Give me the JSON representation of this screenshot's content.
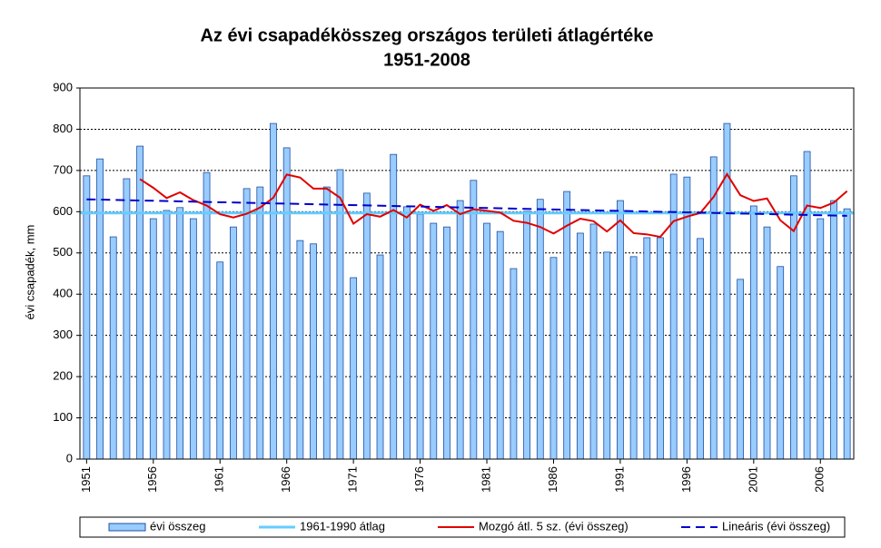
{
  "chart_data": {
    "type": "bar",
    "title": "Az évi csapadékösszeg országos területi átlagértéke",
    "subtitle": "1951-2008",
    "y_label": "évi csapadék, mm",
    "categories": [
      "1951",
      null,
      null,
      null,
      null,
      "1956",
      null,
      null,
      null,
      null,
      "1961",
      null,
      null,
      null,
      null,
      "1966",
      null,
      null,
      null,
      null,
      "1971",
      null,
      null,
      null,
      null,
      "1976",
      null,
      null,
      null,
      null,
      "1981",
      null,
      null,
      null,
      null,
      "1986",
      null,
      null,
      null,
      null,
      "1991",
      null,
      null,
      null,
      null,
      "1996",
      null,
      null,
      null,
      null,
      "2001",
      null,
      null,
      null,
      null,
      "2006",
      null,
      null
    ],
    "xlim": [
      1951,
      2008
    ],
    "ylim": [
      0,
      900
    ],
    "yticks": [
      0,
      100,
      200,
      300,
      400,
      500,
      600,
      700,
      800,
      900
    ],
    "grid": true,
    "series": [
      {
        "name": "évi összeg",
        "type": "bar",
        "color": "#99ccff",
        "edge": "#1f4fa0",
        "values": [
          687,
          728,
          539,
          680,
          759,
          583,
          603,
          610,
          583,
          695,
          478,
          563,
          656,
          660,
          814,
          755,
          530,
          522,
          660,
          702,
          440,
          645,
          495,
          739,
          612,
          594,
          572,
          563,
          627,
          676,
          572,
          552,
          462,
          601,
          630,
          489,
          649,
          548,
          570,
          502,
          627,
          491,
          537,
          537,
          691,
          684,
          535,
          733,
          814,
          436,
          614,
          563,
          467,
          687,
          746,
          583,
          627,
          607
        ]
      },
      {
        "name": "1961-1990 átlag",
        "type": "hline",
        "color": "#66ccff",
        "value": 597
      },
      {
        "name": "Mozgó átl. 5 sz. (évi összeg)",
        "type": "line",
        "color": "#e00000",
        "values": [
          null,
          null,
          null,
          null,
          679,
          658,
          633,
          647,
          628,
          615,
          594,
          586,
          595,
          610,
          634,
          690,
          683,
          656,
          656,
          634,
          571,
          594,
          588,
          604,
          586,
          617,
          602,
          616,
          594,
          606,
          602,
          598,
          578,
          573,
          563,
          547,
          566,
          583,
          577,
          552,
          579,
          548,
          545,
          539,
          577,
          588,
          597,
          636,
          691,
          640,
          626,
          632,
          579,
          553,
          615,
          609,
          622,
          650
        ]
      },
      {
        "name": "Lineáris (évi összeg)",
        "type": "trend",
        "color": "#0000cc",
        "x": [
          1951,
          2008
        ],
        "values": [
          630,
          590
        ]
      }
    ],
    "legend": "bottom"
  }
}
